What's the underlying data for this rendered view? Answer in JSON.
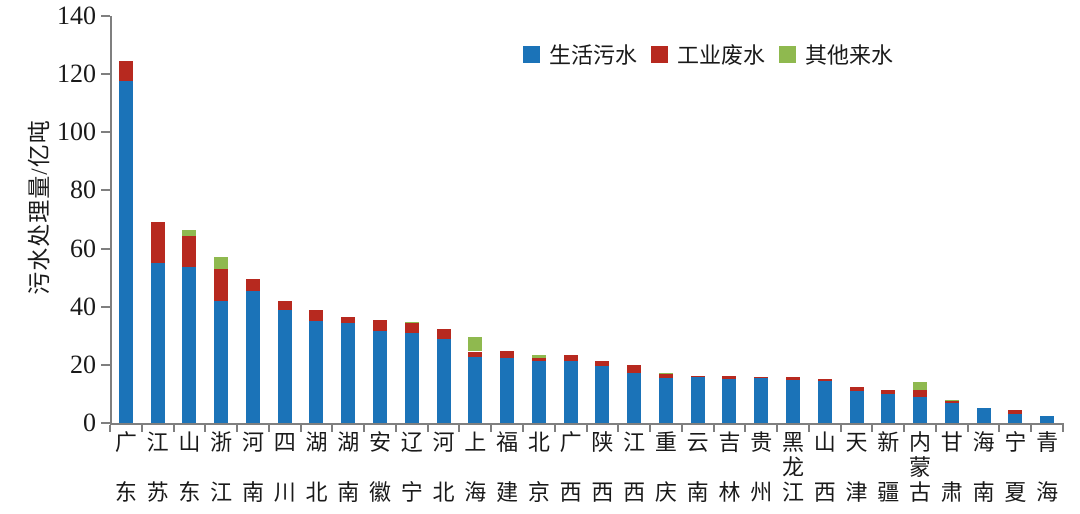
{
  "chart_data": {
    "type": "bar",
    "stacked": true,
    "title": "",
    "xlabel": "",
    "ylabel": "污水处理量/亿吨",
    "ylim": [
      0,
      140
    ],
    "ytick_step": 20,
    "grid": false,
    "legend_position": "top-center",
    "categories": [
      "广东",
      "江苏",
      "山东",
      "浙江",
      "河南",
      "四川",
      "湖北",
      "湖南",
      "安徽",
      "辽宁",
      "河北",
      "上海",
      "福建",
      "北京",
      "广西",
      "陕西",
      "江西",
      "重庆",
      "云南",
      "吉林",
      "贵州",
      "黑龙江",
      "山西",
      "天津",
      "新疆",
      "内蒙古",
      "甘肃",
      "海南",
      "宁夏",
      "青海"
    ],
    "series": [
      {
        "name": "生活污水",
        "color": "#1B73B8",
        "values": [
          117.5,
          55,
          53.5,
          42,
          45.5,
          39,
          35,
          34.5,
          31.5,
          31,
          29,
          22.7,
          22.3,
          21.5,
          21.3,
          19.5,
          17.3,
          15.5,
          15.8,
          15.1,
          15.5,
          14.9,
          14.3,
          11,
          10,
          9,
          6.8,
          5.3,
          3.2,
          2.4
        ]
      },
      {
        "name": "工业废水",
        "color": "#B7291F",
        "values": [
          7,
          14,
          11,
          11,
          4,
          3,
          4,
          2,
          4,
          3.3,
          3.5,
          1.9,
          2.4,
          1,
          2,
          2,
          2.5,
          1.2,
          0.4,
          1.2,
          0.3,
          0.9,
          1,
          1.5,
          1.3,
          2.5,
          0.8,
          0,
          1.2,
          0
        ]
      },
      {
        "name": "其他来水",
        "color": "#8FB94F",
        "values": [
          0,
          0,
          2,
          4,
          0,
          0,
          0,
          0,
          0,
          0.5,
          0,
          4.9,
          0,
          0.9,
          0,
          0,
          0,
          0.5,
          0,
          0,
          0,
          0,
          0,
          0,
          0,
          2.5,
          0.3,
          0,
          0,
          0
        ]
      }
    ],
    "axis_color": "#7f7f7f",
    "text_color": "#1a1a1a"
  }
}
